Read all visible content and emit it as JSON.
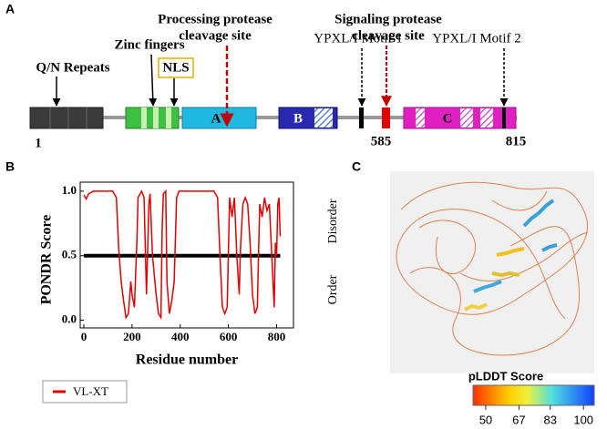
{
  "panel_a": {
    "label": "A",
    "domains": [
      "A",
      "B",
      "C"
    ],
    "annotations": [
      "Q/N Repeats",
      "Zinc fingers",
      "NLS",
      "Processing protease",
      "cleavage site",
      "YPXL/I Motif 1",
      "Signaling protease",
      "cleavage site",
      "YPXL/I Motif 2"
    ],
    "positions": [
      1,
      585,
      815
    ]
  },
  "chart_data": {
    "type": "line",
    "label": "B",
    "y_label": "PONDR  Score",
    "x_label": "Residue number",
    "regions": [
      "Disorder",
      "Order"
    ],
    "x": [
      0,
      10,
      20,
      40,
      80,
      120,
      135,
      145,
      155,
      165,
      175,
      185,
      195,
      200,
      210,
      220,
      225,
      240,
      250,
      260,
      270,
      275,
      285,
      300,
      310,
      320,
      325,
      330,
      340,
      345,
      355,
      365,
      375,
      385,
      395,
      420,
      460,
      500,
      540,
      555,
      565,
      575,
      585,
      595,
      605,
      615,
      625,
      635,
      645,
      650,
      660,
      670,
      680,
      690,
      700,
      710,
      720,
      730,
      740,
      750,
      760,
      770,
      780,
      790,
      795,
      800,
      805,
      810,
      815
    ],
    "series": [
      {
        "name": "VL-XT",
        "color": "#e00000",
        "values": [
          0.97,
          0.94,
          0.98,
          1.0,
          1.0,
          1.0,
          0.95,
          0.55,
          0.3,
          0.15,
          0.02,
          0.05,
          0.3,
          0.2,
          0.1,
          0.6,
          0.95,
          1.0,
          0.95,
          0.2,
          0.9,
          0.98,
          0.5,
          0.2,
          0.05,
          0.02,
          0.7,
          0.98,
          1.0,
          0.3,
          0.05,
          0.15,
          0.3,
          0.95,
          1.0,
          1.0,
          1.0,
          1.0,
          1.0,
          0.95,
          0.5,
          0.1,
          0.05,
          0.1,
          0.95,
          0.8,
          0.95,
          0.5,
          0.2,
          0.55,
          0.9,
          0.95,
          0.9,
          0.6,
          0.2,
          0.05,
          0.1,
          0.9,
          0.8,
          0.95,
          0.85,
          0.9,
          0.5,
          0.1,
          0.6,
          0.5,
          0.9,
          0.95,
          0.65
        ]
      }
    ],
    "threshold": 0.5,
    "xlim": [
      -15,
      870
    ],
    "ylim": [
      -0.06,
      1.07
    ],
    "xticks": [
      0,
      200,
      400,
      600,
      800
    ],
    "yticks": [
      {
        "value": 0,
        "label": "0.0"
      },
      {
        "value": 0.5,
        "label": "0.5"
      },
      {
        "value": 1,
        "label": "1.0"
      }
    ]
  },
  "panel_c": {
    "label": "C",
    "colorbar": {
      "title": "pLDDT Score",
      "lim": [
        43.5,
        105.5
      ],
      "ticks": [
        50,
        67,
        83,
        100
      ]
    }
  }
}
